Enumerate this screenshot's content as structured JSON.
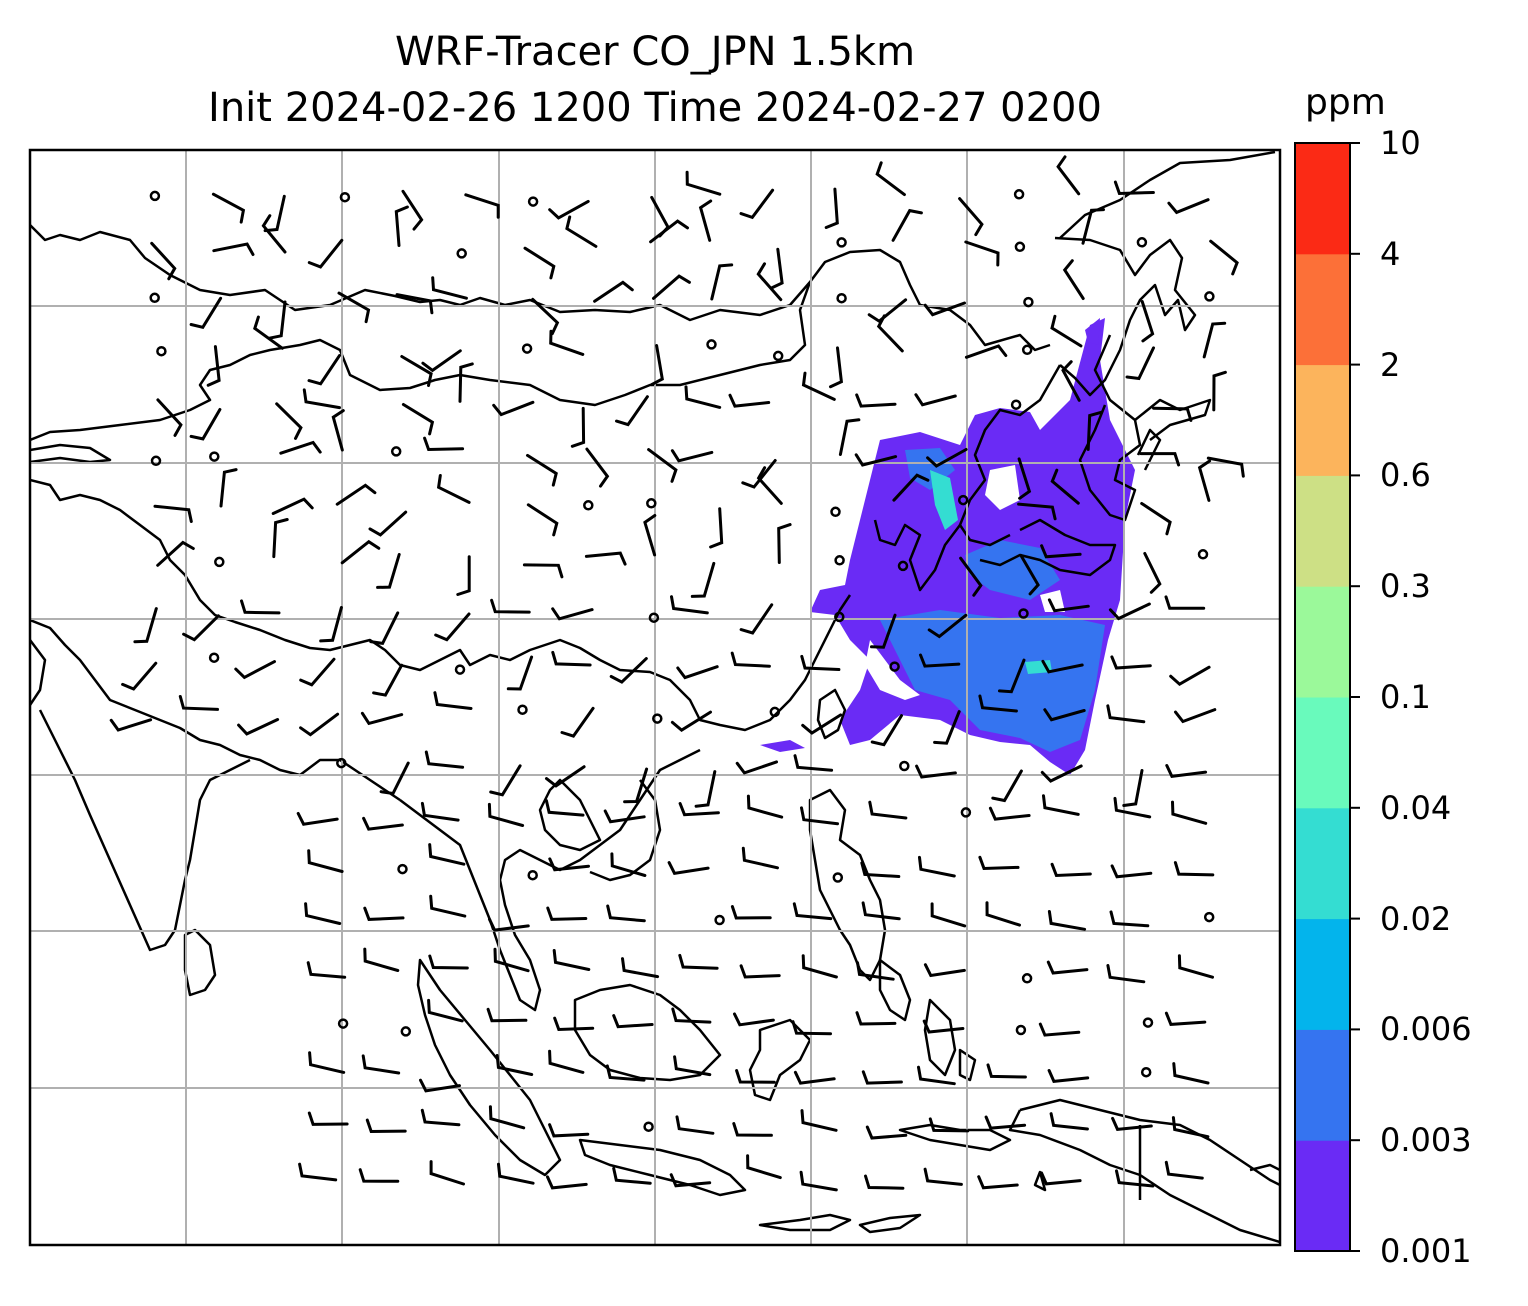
{
  "title": {
    "line1": "WRF-Tracer CO_JPN 1.5km",
    "line2": "Init 2024-02-26 1200 Time 2024-02-27 0200"
  },
  "colorbar": {
    "unit": "ppm",
    "ticks": [
      "0.001",
      "0.003",
      "0.006",
      "0.02",
      "0.04",
      "0.1",
      "0.3",
      "0.6",
      "2",
      "4",
      "10"
    ],
    "colors": [
      "#6a2bf5",
      "#3574f0",
      "#03b4ec",
      "#34ddd2",
      "#69fabc",
      "#9bf99a",
      "#cde085",
      "#fcb45c",
      "#fc7038",
      "#fb2a15"
    ]
  },
  "map": {
    "gridlines": true,
    "coastline_color": "#000000",
    "gridline_color": "#b0b0b0",
    "wind_barbs": true
  }
}
